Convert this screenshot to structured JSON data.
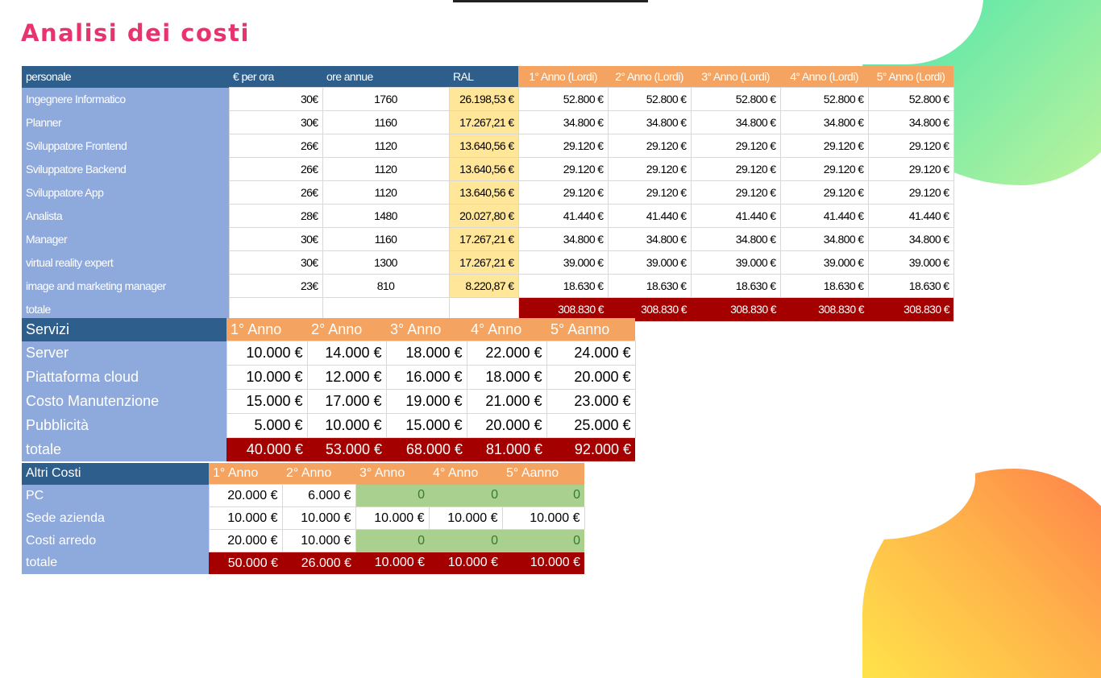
{
  "title": "Analisi dei costi",
  "colors": {
    "title": "#e8336e",
    "header_blue": "#2e5f8c",
    "label_blue": "#8ea9db",
    "header_orange": "#f4a460",
    "ral_yellow": "#ffe699",
    "total_red": "#a50000",
    "zero_green": "#a9d08e"
  },
  "personale": {
    "headers": [
      "personale",
      "€ per ora",
      "ore annue",
      "RAL",
      "1° Anno (Lordi)",
      "2° Anno (Lordi)",
      "3° Anno (Lordi)",
      "4° Anno (Lordi)",
      "5° Anno (Lordi)"
    ],
    "rows": [
      {
        "name": "Ingegnere Informatico",
        "rate": "30€",
        "hours": "1760",
        "ral": "26.198,53 €",
        "years": [
          "52.800 €",
          "52.800 €",
          "52.800 €",
          "52.800 €",
          "52.800 €"
        ]
      },
      {
        "name": "Planner",
        "rate": "30€",
        "hours": "1160",
        "ral": "17.267,21 €",
        "years": [
          "34.800 €",
          "34.800 €",
          "34.800 €",
          "34.800 €",
          "34.800 €"
        ]
      },
      {
        "name": "Sviluppatore Frontend",
        "rate": "26€",
        "hours": "1120",
        "ral": "13.640,56 €",
        "years": [
          "29.120 €",
          "29.120 €",
          "29.120 €",
          "29.120 €",
          "29.120 €"
        ]
      },
      {
        "name": "Sviluppatore Backend",
        "rate": "26€",
        "hours": "1120",
        "ral": "13.640,56 €",
        "years": [
          "29.120 €",
          "29.120 €",
          "29.120 €",
          "29.120 €",
          "29.120 €"
        ]
      },
      {
        "name": "Sviluppatore App",
        "rate": "26€",
        "hours": "1120",
        "ral": "13.640,56 €",
        "years": [
          "29.120 €",
          "29.120 €",
          "29.120 €",
          "29.120 €",
          "29.120 €"
        ]
      },
      {
        "name": "Analista",
        "rate": "28€",
        "hours": "1480",
        "ral": "20.027,80 €",
        "years": [
          "41.440 €",
          "41.440 €",
          "41.440 €",
          "41.440 €",
          "41.440 €"
        ]
      },
      {
        "name": "Manager",
        "rate": "30€",
        "hours": "1160",
        "ral": "17.267,21 €",
        "years": [
          "34.800 €",
          "34.800 €",
          "34.800 €",
          "34.800 €",
          "34.800 €"
        ]
      },
      {
        "name": "virtual reality expert",
        "rate": "30€",
        "hours": "1300",
        "ral": "17.267,21 €",
        "years": [
          "39.000 €",
          "39.000 €",
          "39.000 €",
          "39.000 €",
          "39.000 €"
        ]
      },
      {
        "name": "image and marketing manager",
        "rate": "23€",
        "hours": "810",
        "ral": "8.220,87 €",
        "years": [
          "18.630 €",
          "18.630 €",
          "18.630 €",
          "18.630 €",
          "18.630 €"
        ]
      }
    ],
    "total": {
      "label": "totale",
      "years": [
        "308.830 €",
        "308.830 €",
        "308.830 €",
        "308.830 €",
        "308.830 €"
      ]
    }
  },
  "servizi": {
    "headers": [
      "Servizi",
      "1° Anno",
      "2° Anno",
      "3° Anno",
      "4° Anno",
      "5° Aanno"
    ],
    "rows": [
      {
        "name": "Server",
        "values": [
          "10.000 €",
          "14.000 €",
          "18.000 €",
          "22.000 €",
          "24.000 €"
        ]
      },
      {
        "name": "Piattaforma cloud",
        "values": [
          "10.000 €",
          "12.000 €",
          "16.000 €",
          "18.000 €",
          "20.000 €"
        ]
      },
      {
        "name": "Costo Manutenzione",
        "values": [
          "15.000 €",
          "17.000 €",
          "19.000 €",
          "21.000 €",
          "23.000 €"
        ]
      },
      {
        "name": "Pubblicità",
        "values": [
          "5.000 €",
          "10.000 €",
          "15.000 €",
          "20.000 €",
          "25.000 €"
        ]
      }
    ],
    "total": {
      "label": "totale",
      "values": [
        "40.000 €",
        "53.000 €",
        "68.000 €",
        "81.000 €",
        "92.000 €"
      ]
    }
  },
  "altri": {
    "headers": [
      "Altri Costi",
      "1° Anno",
      "2° Anno",
      "3° Anno",
      "4° Anno",
      "5° Aanno"
    ],
    "rows": [
      {
        "name": "PC",
        "values": [
          "20.000 €",
          "6.000 €",
          "0",
          "0",
          "0"
        ]
      },
      {
        "name": "Sede azienda",
        "values": [
          "10.000 €",
          "10.000 €",
          "10.000 €",
          "10.000 €",
          "10.000 €"
        ]
      },
      {
        "name": "Costi arredo",
        "values": [
          "20.000 €",
          "10.000 €",
          "0",
          "0",
          "0"
        ]
      }
    ],
    "total": {
      "label": "totale",
      "values": [
        "50.000 €",
        "26.000 €",
        "10.000 €",
        "10.000 €",
        "10.000 €"
      ]
    }
  }
}
